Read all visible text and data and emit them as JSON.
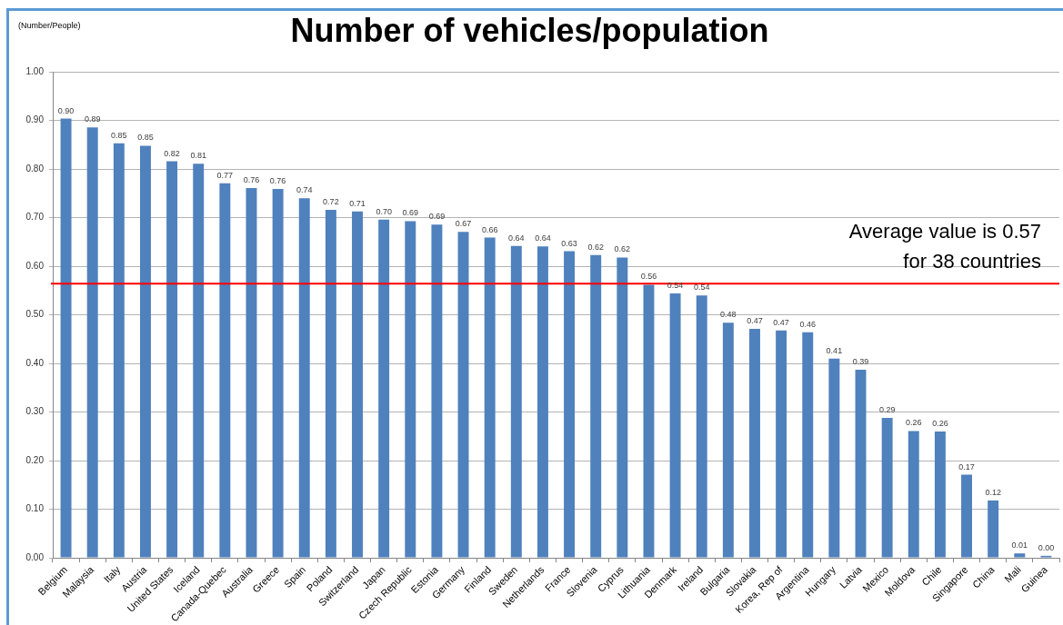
{
  "chart_data": {
    "type": "bar",
    "title": "Number of vehicles/population",
    "ylabel": "(Number/People)",
    "categories": [
      "Belgium",
      "Malaysia",
      "Italy",
      "Austria",
      "United States",
      "Iceland",
      "Canada-Quebec",
      "Australia",
      "Greece",
      "Spain",
      "Poland",
      "Switzerland",
      "Japan",
      "Czech Republic",
      "Estonia",
      "Germany",
      "Finland",
      "Sweden",
      "Netherlands",
      "France",
      "Slovenia",
      "Cyprus",
      "Lithuania",
      "Denmark",
      "Ireland",
      "Bulgaria",
      "Slovakia",
      "Korea, Rep of",
      "Argentina",
      "Hungary",
      "Latvia",
      "Mexico",
      "Moldova",
      "Chile",
      "Singapore",
      "China",
      "Mali",
      "Guinea"
    ],
    "values": [
      0.904,
      0.886,
      0.853,
      0.848,
      0.816,
      0.811,
      0.771,
      0.761,
      0.759,
      0.74,
      0.716,
      0.713,
      0.696,
      0.693,
      0.686,
      0.671,
      0.659,
      0.642,
      0.641,
      0.631,
      0.623,
      0.618,
      0.562,
      0.544,
      0.54,
      0.484,
      0.471,
      0.468,
      0.464,
      0.41,
      0.387,
      0.288,
      0.261,
      0.26,
      0.171,
      0.118,
      0.009,
      0.004
    ],
    "value_labels": [
      "0.90",
      "0.89",
      "0.85",
      "0.85",
      "0.82",
      "0.81",
      "0.77",
      "0.76",
      "0.76",
      "0.74",
      "0.72",
      "0.71",
      "0.70",
      "0.69",
      "0.69",
      "0.67",
      "0.66",
      "0.64",
      "0.64",
      "0.63",
      "0.62",
      "0.62",
      "0.56",
      "0.54",
      "0.54",
      "0.48",
      "0.47",
      "0.47",
      "0.46",
      "0.41",
      "0.39",
      "0.29",
      "0.26",
      "0.26",
      "0.17",
      "0.12",
      "0.01",
      "0.00"
    ],
    "color": "#4f81bd",
    "ylim": [
      0,
      1
    ],
    "yticks": [
      {
        "value": 0,
        "label": "0.00"
      },
      {
        "value": 0.1,
        "label": "0.10"
      },
      {
        "value": 0.2,
        "label": "0.20"
      },
      {
        "value": 0.3,
        "label": "0.30"
      },
      {
        "value": 0.4,
        "label": "0.40"
      },
      {
        "value": 0.5,
        "label": "0.50"
      },
      {
        "value": 0.6,
        "label": "0.60"
      },
      {
        "value": 0.7,
        "label": "0.70"
      },
      {
        "value": 0.8,
        "label": "0.80"
      },
      {
        "value": 0.9,
        "label": "0.90"
      },
      {
        "value": 1,
        "label": "1.00"
      }
    ],
    "grid": "y",
    "ref_lines": [
      {
        "axis": "y",
        "value": 0.564,
        "color": "#ff0000"
      }
    ],
    "annotations": [
      "Average value is 0.57\nfor 38 countries"
    ]
  }
}
